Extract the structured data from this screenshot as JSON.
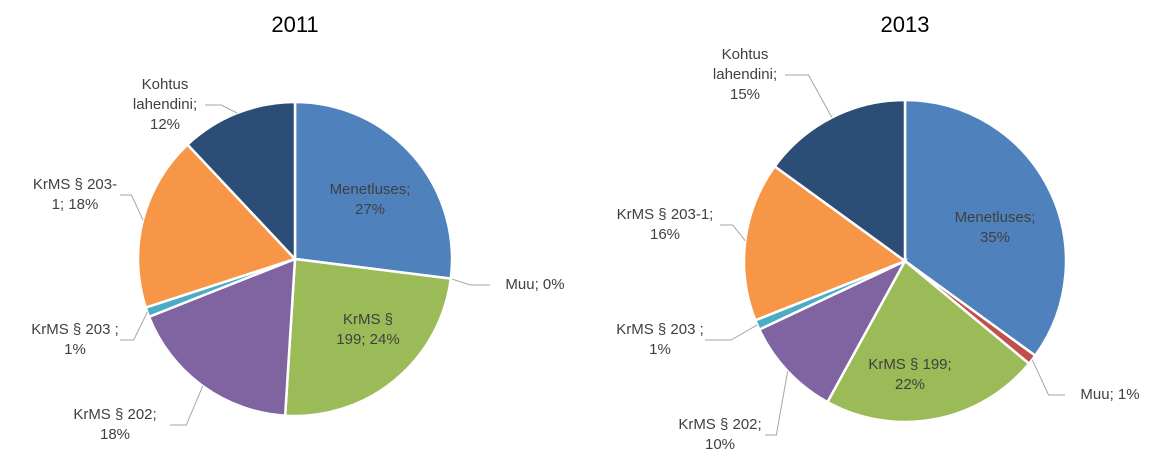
{
  "chart_data": [
    {
      "type": "pie",
      "title": "2011",
      "values": [
        27,
        0,
        24,
        18,
        1,
        18,
        12
      ],
      "value_labels": [
        "Menetluses; 27%",
        "Muu; 0%",
        "KrMS § 199; 24%",
        "KrMS § 202; 18%",
        "KrMS § 203 ; 1%",
        "KrMS § 203-1; 18%",
        "Kohtus lahendini; 12%"
      ],
      "colors": [
        "#4f81bd",
        "#c0504d",
        "#9bbb59",
        "#8064a2",
        "#4bacc6",
        "#f79646",
        "#2c4d75"
      ]
    },
    {
      "type": "pie",
      "title": "2013",
      "values": [
        35,
        1,
        22,
        10,
        1,
        16,
        15
      ],
      "value_labels": [
        "Menetluses; 35%",
        "Muu; 1%",
        "KrMS § 199; 22%",
        "KrMS § 202; 10%",
        "KrMS § 203 ; 1%",
        "KrMS § 203-1; 16%",
        "Kohtus lahendini; 15%"
      ],
      "colors": [
        "#4f81bd",
        "#c0504d",
        "#9bbb59",
        "#8064a2",
        "#4bacc6",
        "#f79646",
        "#2c4d75"
      ]
    }
  ]
}
